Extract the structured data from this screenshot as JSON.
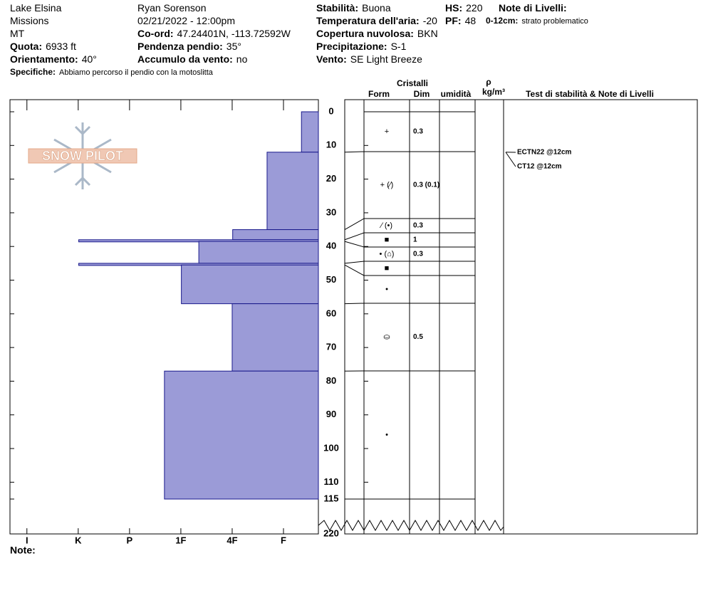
{
  "header": {
    "fields": [
      {
        "value": "Lake Elsina"
      },
      {
        "value": "Missions"
      },
      {
        "value": "MT"
      },
      {
        "label": "Quota:",
        "value": "6933 ft"
      },
      {
        "label": "Orientamento:",
        "value": "40°"
      },
      {
        "label": "Specifiche:",
        "value": "Abbiamo percorso il pendio con la motoslitta"
      },
      {
        "value": "Ryan Sorenson"
      },
      {
        "value": "02/21/2022 - 12:00pm"
      },
      {
        "label": "Co-ord:",
        "value": "47.24401N, -113.72592W"
      },
      {
        "label": "Pendenza pendio:",
        "value": "35°"
      },
      {
        "label": "Accumulo da vento:",
        "value": "no"
      },
      {
        "label": "Stabilità:",
        "value": "Buona"
      },
      {
        "label": "Temperatura dell'aria:",
        "value": "-20"
      },
      {
        "label": "Copertura nuvolosa:",
        "value": "BKN"
      },
      {
        "label": "Precipitazione:",
        "value": "S-1"
      },
      {
        "label": "Vento:",
        "value": "SE Light Breeze"
      },
      {
        "label": "HS:",
        "value": "220"
      },
      {
        "label": "PF:",
        "value": "48"
      },
      {
        "label": "Note di Livelli:"
      },
      {
        "label": "0-12cm:",
        "value": "strato problematico"
      }
    ]
  },
  "logo": "SNOW PILOT",
  "columns": {
    "crystals": "Cristalli",
    "form": "Form",
    "dim": "Dim",
    "moisture": "umidità",
    "rho": "ρ",
    "density_unit": "kg/m³",
    "tests": "Test di stabilità & Note di Livelli"
  },
  "depth_axis": {
    "ylim": [
      0,
      115
    ],
    "yticks": [
      0,
      10,
      20,
      30,
      40,
      50,
      60,
      70,
      80,
      90,
      100,
      110,
      115
    ],
    "total": 220
  },
  "hardness_axis": {
    "xlim": [
      6.33,
      0.32
    ],
    "xticks": [
      {
        "value": 6,
        "label": "I"
      },
      {
        "value": 5,
        "label": "K"
      },
      {
        "value": 4,
        "label": "P"
      },
      {
        "value": 3,
        "label": "1F"
      },
      {
        "value": 2,
        "label": "4F"
      },
      {
        "value": 1,
        "label": "F"
      }
    ]
  },
  "layers": [
    {
      "top": 0,
      "bottom": 12,
      "hardness": 0.65,
      "form": "+",
      "dim": "0.3"
    },
    {
      "top": 12,
      "bottom": 35,
      "hardness": 1.32,
      "form": "+ (⁄)",
      "dim": "0.3 (0.1)"
    },
    {
      "top": 35,
      "bottom": 38,
      "hardness": 1.99,
      "form": "⁄ (•)",
      "dim": "0.3"
    },
    {
      "top": 38,
      "bottom": 38.5,
      "hardness": 4.99,
      "form": "■",
      "dim": "1"
    },
    {
      "top": 38.5,
      "bottom": 45,
      "hardness": 2.65,
      "form": "• (⌂)",
      "dim": "0.3"
    },
    {
      "top": 45,
      "bottom": 45.5,
      "hardness": 4.99,
      "form": "■"
    },
    {
      "top": 45.5,
      "bottom": 57,
      "hardness": 2.99,
      "form": "•"
    },
    {
      "top": 57,
      "bottom": 77,
      "hardness": 2,
      "form": "⛀",
      "dim": "0.5"
    },
    {
      "top": 77,
      "bottom": 115,
      "hardness": 3.32,
      "form": "•"
    }
  ],
  "tests": [
    {
      "text": "ECTN22 @12cm",
      "depth": 12
    },
    {
      "text": "CT12 @12cm",
      "depth": 12
    }
  ],
  "note_label": "Note:"
}
